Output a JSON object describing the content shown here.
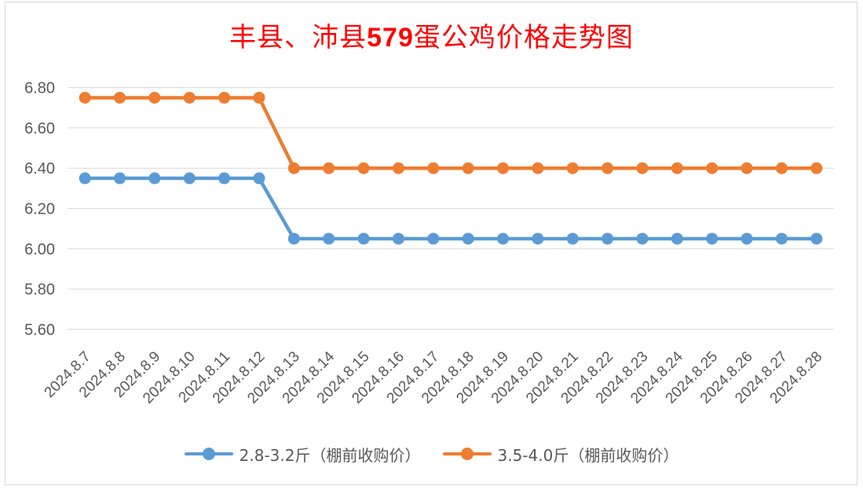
{
  "title": "丰县、沛县579蛋公鸡价格走势图",
  "chart_data": {
    "type": "line",
    "title": "丰县、沛县579蛋公鸡价格走势图",
    "xlabel": "",
    "ylabel": "",
    "ylim": [
      5.5,
      6.9
    ],
    "yticks": [
      "6.80",
      "6.60",
      "6.40",
      "6.20",
      "6.00",
      "5.80",
      "5.60"
    ],
    "grid": true,
    "legend_position": "bottom",
    "categories": [
      "2024.8.7",
      "2024.8.8",
      "2024.8.9",
      "2024.8.10",
      "2024.8.11",
      "2024.8.12",
      "2024.8.13",
      "2024.8.14",
      "2024.8.15",
      "2024.8.16",
      "2024.8.17",
      "2024.8.18",
      "2024.8.19",
      "2024.8.20",
      "2024.8.21",
      "2024.8.22",
      "2024.8.23",
      "2024.8.24",
      "2024.8.25",
      "2024.8.26",
      "2024.8.27",
      "2024.8.28"
    ],
    "series": [
      {
        "name": "2.8-3.2斤（棚前收购价）",
        "color": "#5b9bd5",
        "values": [
          6.35,
          6.35,
          6.35,
          6.35,
          6.35,
          6.35,
          6.05,
          6.05,
          6.05,
          6.05,
          6.05,
          6.05,
          6.05,
          6.05,
          6.05,
          6.05,
          6.05,
          6.05,
          6.05,
          6.05,
          6.05,
          6.05
        ]
      },
      {
        "name": "3.5-4.0斤（棚前收购价）",
        "color": "#ed7d31",
        "values": [
          6.75,
          6.75,
          6.75,
          6.75,
          6.75,
          6.75,
          6.4,
          6.4,
          6.4,
          6.4,
          6.4,
          6.4,
          6.4,
          6.4,
          6.4,
          6.4,
          6.4,
          6.4,
          6.4,
          6.4,
          6.4,
          6.4
        ]
      }
    ]
  }
}
